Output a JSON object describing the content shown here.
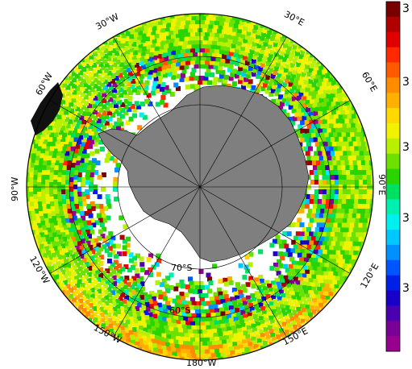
{
  "map": {
    "projection": "south-polar-stereographic",
    "longitude_labels": [
      {
        "id": "lon-30w",
        "text": "30°W"
      },
      {
        "id": "lon-30e",
        "text": "30°E"
      },
      {
        "id": "lon-60w",
        "text": "60°W"
      },
      {
        "id": "lon-60e",
        "text": "60°E"
      },
      {
        "id": "lon-90w",
        "text": "90°W"
      },
      {
        "id": "lon-90e",
        "text": "90°E"
      },
      {
        "id": "lon-120w",
        "text": "120°W"
      },
      {
        "id": "lon-120e",
        "text": "120°E"
      },
      {
        "id": "lon-150w",
        "text": "150°W"
      },
      {
        "id": "lon-150e",
        "text": "150°E"
      },
      {
        "id": "lon-180w",
        "text": "180°W"
      }
    ],
    "latitude_labels": [
      {
        "id": "lat-70s",
        "text": "70°S"
      },
      {
        "id": "lat-60s",
        "text": "60°S"
      }
    ],
    "colors": {
      "land": "#7f7f7f",
      "ocean_background": "#ffffff",
      "graticule": "#000000"
    }
  },
  "colorbar": {
    "tick_labels": [
      "3",
      "3",
      "3",
      "3",
      "3"
    ],
    "palette": [
      "#7a0000",
      "#b00000",
      "#e00000",
      "#ff2a00",
      "#ff5a00",
      "#ff8c00",
      "#ffb000",
      "#ffd800",
      "#f2f200",
      "#b8f000",
      "#6ee000",
      "#2ad400",
      "#00e060",
      "#00f0b0",
      "#00f0f0",
      "#00c8ff",
      "#0090ff",
      "#0055ff",
      "#0020e8",
      "#1800c8",
      "#4a00b0",
      "#7a0098",
      "#9a0090"
    ]
  }
}
